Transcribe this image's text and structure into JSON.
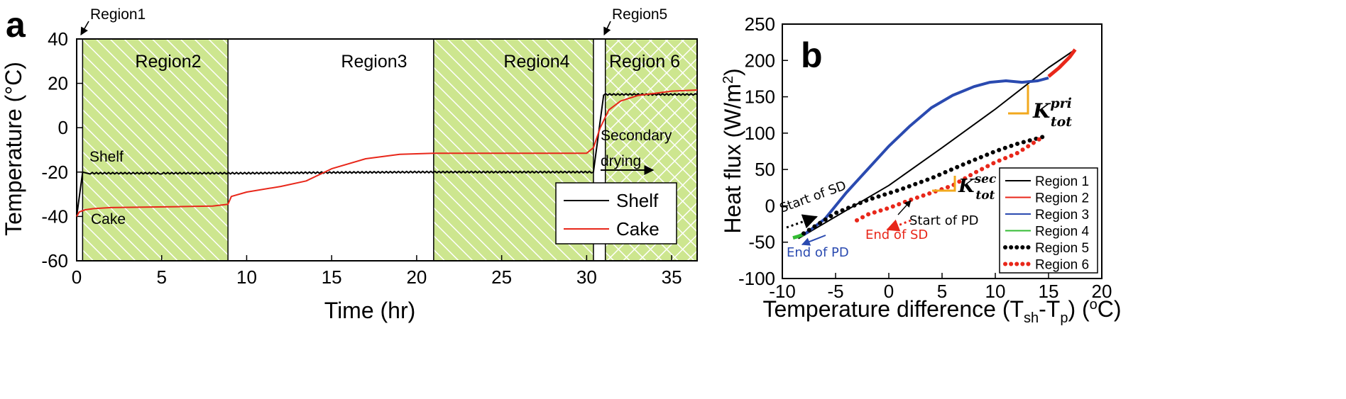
{
  "chart_data": [
    {
      "id": "a",
      "panel_label": "a",
      "type": "line",
      "xlabel": "Time (hr)",
      "ylabel": "Temperature (°C)",
      "xlim": [
        0,
        36.5
      ],
      "ylim": [
        -60,
        40
      ],
      "x_ticks": [
        "0",
        "5",
        "10",
        "15",
        "20",
        "25",
        "30",
        "35"
      ],
      "y_ticks": [
        "40",
        "20",
        "0",
        "-20",
        "-40",
        "-60"
      ],
      "regions": [
        {
          "label": "Region1",
          "start": 0,
          "end": 0.35,
          "fill": "none"
        },
        {
          "label": "Region2",
          "start": 0.35,
          "end": 8.9,
          "fill": "diag"
        },
        {
          "label": "Region3",
          "start": 8.9,
          "end": 21.0,
          "fill": "none"
        },
        {
          "label": "Region4",
          "start": 21.0,
          "end": 30.4,
          "fill": "diag"
        },
        {
          "label": "Region5",
          "start": 30.4,
          "end": 31.1,
          "fill": "none"
        },
        {
          "label": "Region 6",
          "start": 31.1,
          "end": 36.5,
          "fill": "cross"
        }
      ],
      "series": [
        {
          "name": "Shelf",
          "color": "#000000",
          "x": [
            0,
            0.35,
            0.8,
            5,
            10,
            15,
            20,
            25,
            30.4,
            31.0,
            36.5
          ],
          "y": [
            -40,
            -20,
            -20.5,
            -20.5,
            -20.5,
            -20.2,
            -20,
            -20,
            -20,
            15,
            15
          ]
        },
        {
          "name": "Cake",
          "color": "#e8271a",
          "x": [
            0,
            0.15,
            0.5,
            1,
            2,
            4,
            6,
            8,
            8.9,
            9.1,
            10,
            12,
            13.5,
            15,
            17,
            19,
            21,
            25,
            30,
            30.4,
            30.8,
            31.3,
            32,
            33,
            34,
            35,
            36.5
          ],
          "y": [
            -40,
            -38,
            -37,
            -36.5,
            -36,
            -35.8,
            -35.6,
            -35.3,
            -34.5,
            -31,
            -29,
            -26.5,
            -24,
            -18.5,
            -14,
            -12,
            -11.5,
            -11.5,
            -11.5,
            -9,
            0,
            8,
            12,
            14.5,
            15.5,
            16.5,
            17
          ]
        }
      ],
      "annotations": {
        "region1": "Region1",
        "region5": "Region5",
        "shelf": "Shelf",
        "cake": "Cake",
        "secondary_1": "Secondary",
        "secondary_2": "drying"
      },
      "legend": {
        "placement": "bottom-right",
        "entries": [
          "Shelf",
          "Cake"
        ]
      }
    },
    {
      "id": "b",
      "panel_label": "b",
      "type": "scatter",
      "xlabel": "Temperature difference (T_sh-T_p) (°C)",
      "ylabel": "Heat flux (W/m²)",
      "xlim": [
        -10,
        20
      ],
      "ylim": [
        -100,
        250
      ],
      "x_ticks": [
        "-10",
        "-5",
        "0",
        "5",
        "10",
        "15",
        "20"
      ],
      "y_ticks": [
        "250",
        "200",
        "150",
        "100",
        "50",
        "0",
        "-50",
        "-100"
      ],
      "series": [
        {
          "name": "Region 1",
          "color": "#000000",
          "style": "line",
          "x": [
            -8.5,
            -5,
            0,
            5,
            10,
            15,
            17.3
          ],
          "y": [
            -45,
            -15,
            28,
            80,
            133,
            190,
            213
          ]
        },
        {
          "name": "Region 2",
          "color": "#e8271a",
          "style": "line",
          "x": [
            15.0,
            16.0,
            17.0,
            17.5
          ],
          "y": [
            178,
            190,
            205,
            215
          ]
        },
        {
          "name": "Region 3",
          "color": "#2a4ab0",
          "style": "line",
          "x": [
            -8.0,
            -6,
            -4,
            -2,
            0,
            2,
            4,
            6,
            8,
            9.5,
            11,
            12.5,
            14,
            15
          ],
          "y": [
            -40,
            -18,
            18,
            50,
            82,
            110,
            135,
            152,
            164,
            170,
            172,
            170,
            172,
            176
          ]
        },
        {
          "name": "Region 4",
          "color": "#33bb33",
          "style": "line",
          "x": [
            -9.0,
            -8.5,
            -8.0
          ],
          "y": [
            -44,
            -42,
            -39
          ]
        },
        {
          "name": "Region 5",
          "color": "#000000",
          "style": "dotted",
          "x": [
            -8.0,
            -5,
            -2,
            1,
            4,
            7,
            10,
            12,
            14.5
          ],
          "y": [
            -38,
            -10,
            8,
            22,
            38,
            57,
            75,
            85,
            95
          ]
        },
        {
          "name": "Region 6",
          "color": "#e8271a",
          "style": "dotted",
          "x": [
            -3.0,
            -2,
            0,
            2,
            4,
            6,
            8,
            10,
            12,
            14.5
          ],
          "y": [
            -20,
            -12,
            -3,
            8,
            18,
            28,
            45,
            60,
            72,
            95
          ]
        }
      ],
      "annotations": {
        "start_sd": "Start of SD",
        "end_pd": "End of PD",
        "end_sd": "End of SD",
        "start_pd": "Start of PD",
        "k_pri_base": "K",
        "k_pri_sup": "pri",
        "k_pri_sub": "tot",
        "k_sec_base": "K",
        "k_sec_sup": "sec",
        "k_sec_sub": "tot"
      },
      "legend": {
        "placement": "bottom-right",
        "entries": [
          "Region 1",
          "Region 2",
          "Region 3",
          "Region 4",
          "Region 5",
          "Region 6"
        ]
      },
      "colors": {
        "accent_orange": "#f2a81d",
        "region_fill": "#cde68f"
      }
    }
  ]
}
